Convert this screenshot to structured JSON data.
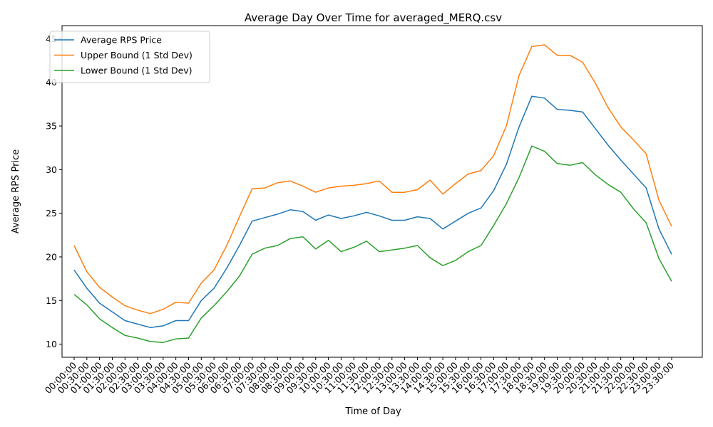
{
  "chart_data": {
    "type": "line",
    "title": "Average Day Over Time for averaged_MERQ.csv",
    "xlabel": "Time of Day",
    "ylabel": "Average RPS Price",
    "ylim": [
      8.5,
      46.5
    ],
    "yticks": [
      10,
      15,
      20,
      25,
      30,
      35,
      40,
      45
    ],
    "grid": false,
    "legend_position": "upper left",
    "categories": [
      "00:00:00",
      "00:30:00",
      "01:00:00",
      "01:30:00",
      "02:00:00",
      "02:30:00",
      "03:00:00",
      "03:30:00",
      "04:00:00",
      "04:30:00",
      "05:00:00",
      "05:30:00",
      "06:00:00",
      "06:30:00",
      "07:00:00",
      "07:30:00",
      "08:00:00",
      "08:30:00",
      "09:00:00",
      "09:30:00",
      "10:00:00",
      "10:30:00",
      "11:00:00",
      "11:30:00",
      "12:00:00",
      "12:30:00",
      "13:00:00",
      "13:30:00",
      "14:00:00",
      "14:30:00",
      "15:00:00",
      "15:30:00",
      "16:00:00",
      "16:30:00",
      "17:00:00",
      "17:30:00",
      "18:00:00",
      "18:30:00",
      "19:00:00",
      "19:30:00",
      "20:00:00",
      "20:30:00",
      "21:00:00",
      "21:30:00",
      "22:00:00",
      "22:30:00",
      "23:00:00",
      "23:30:00"
    ],
    "series": [
      {
        "name": "Average RPS Price",
        "color": "#1f77b4",
        "values": [
          18.5,
          16.4,
          14.7,
          13.7,
          12.7,
          12.3,
          11.9,
          12.1,
          12.7,
          12.7,
          15.0,
          16.4,
          18.7,
          21.3,
          24.1,
          24.5,
          24.9,
          25.4,
          25.2,
          24.2,
          24.8,
          24.4,
          24.7,
          25.1,
          24.7,
          24.2,
          24.2,
          24.6,
          24.4,
          23.2,
          24.1,
          25.0,
          25.6,
          27.6,
          30.6,
          34.9,
          38.4,
          38.2,
          36.9,
          36.8,
          36.6,
          34.7,
          32.8,
          31.1,
          29.5,
          27.9,
          23.2,
          20.3
        ]
      },
      {
        "name": "Upper Bound (1 Std Dev)",
        "color": "#ff7f0e",
        "values": [
          21.3,
          18.3,
          16.5,
          15.4,
          14.4,
          13.9,
          13.5,
          14.0,
          14.8,
          14.7,
          17.0,
          18.5,
          21.3,
          24.6,
          27.8,
          27.9,
          28.5,
          28.7,
          28.1,
          27.4,
          27.9,
          28.1,
          28.2,
          28.4,
          28.7,
          27.4,
          27.4,
          27.7,
          28.8,
          27.2,
          28.4,
          29.5,
          29.9,
          31.6,
          35.0,
          40.8,
          44.1,
          44.3,
          43.1,
          43.1,
          42.3,
          39.9,
          37.1,
          34.9,
          33.4,
          31.8,
          26.5,
          23.5
        ]
      },
      {
        "name": "Lower Bound (1 Std Dev)",
        "color": "#2ca02c",
        "values": [
          15.7,
          14.5,
          12.9,
          11.9,
          11.0,
          10.7,
          10.3,
          10.2,
          10.6,
          10.7,
          13.0,
          14.4,
          16.0,
          17.8,
          20.3,
          21.0,
          21.3,
          22.1,
          22.3,
          20.9,
          21.9,
          20.6,
          21.1,
          21.8,
          20.6,
          20.8,
          21.0,
          21.3,
          19.9,
          19.0,
          19.6,
          20.6,
          21.3,
          23.6,
          26.1,
          29.1,
          32.7,
          32.1,
          30.7,
          30.5,
          30.8,
          29.4,
          28.3,
          27.4,
          25.5,
          23.9,
          19.8,
          17.2
        ]
      }
    ]
  }
}
